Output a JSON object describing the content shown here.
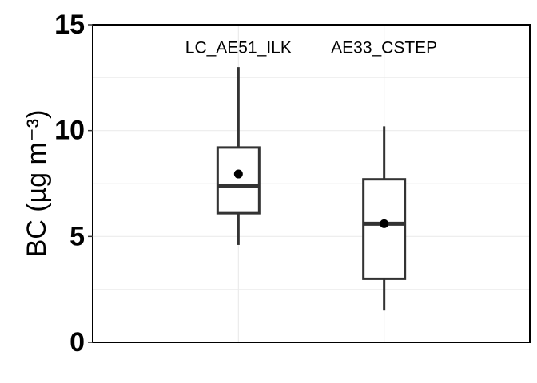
{
  "chart_data": {
    "type": "boxplot",
    "ylabel": "BC (µg m⁻³)",
    "ylim": [
      0,
      15
    ],
    "yticks": [
      0,
      5,
      10,
      15
    ],
    "grid": true,
    "categories": [
      "LC_AE51_ILK",
      "AE33_CSTEP"
    ],
    "boxes": [
      {
        "name": "LC_AE51_ILK",
        "whisker_low": 4.6,
        "q1": 6.1,
        "median": 7.4,
        "q3": 9.2,
        "whisker_high": 13.0,
        "mean": 7.95
      },
      {
        "name": "AE33_CSTEP",
        "whisker_low": 1.5,
        "q1": 3.0,
        "median": 5.6,
        "q3": 7.7,
        "whisker_high": 10.2,
        "mean": 5.6
      }
    ],
    "colors": {
      "box": "#333333",
      "grid": "#ebebeb",
      "mean": "#000000"
    }
  }
}
